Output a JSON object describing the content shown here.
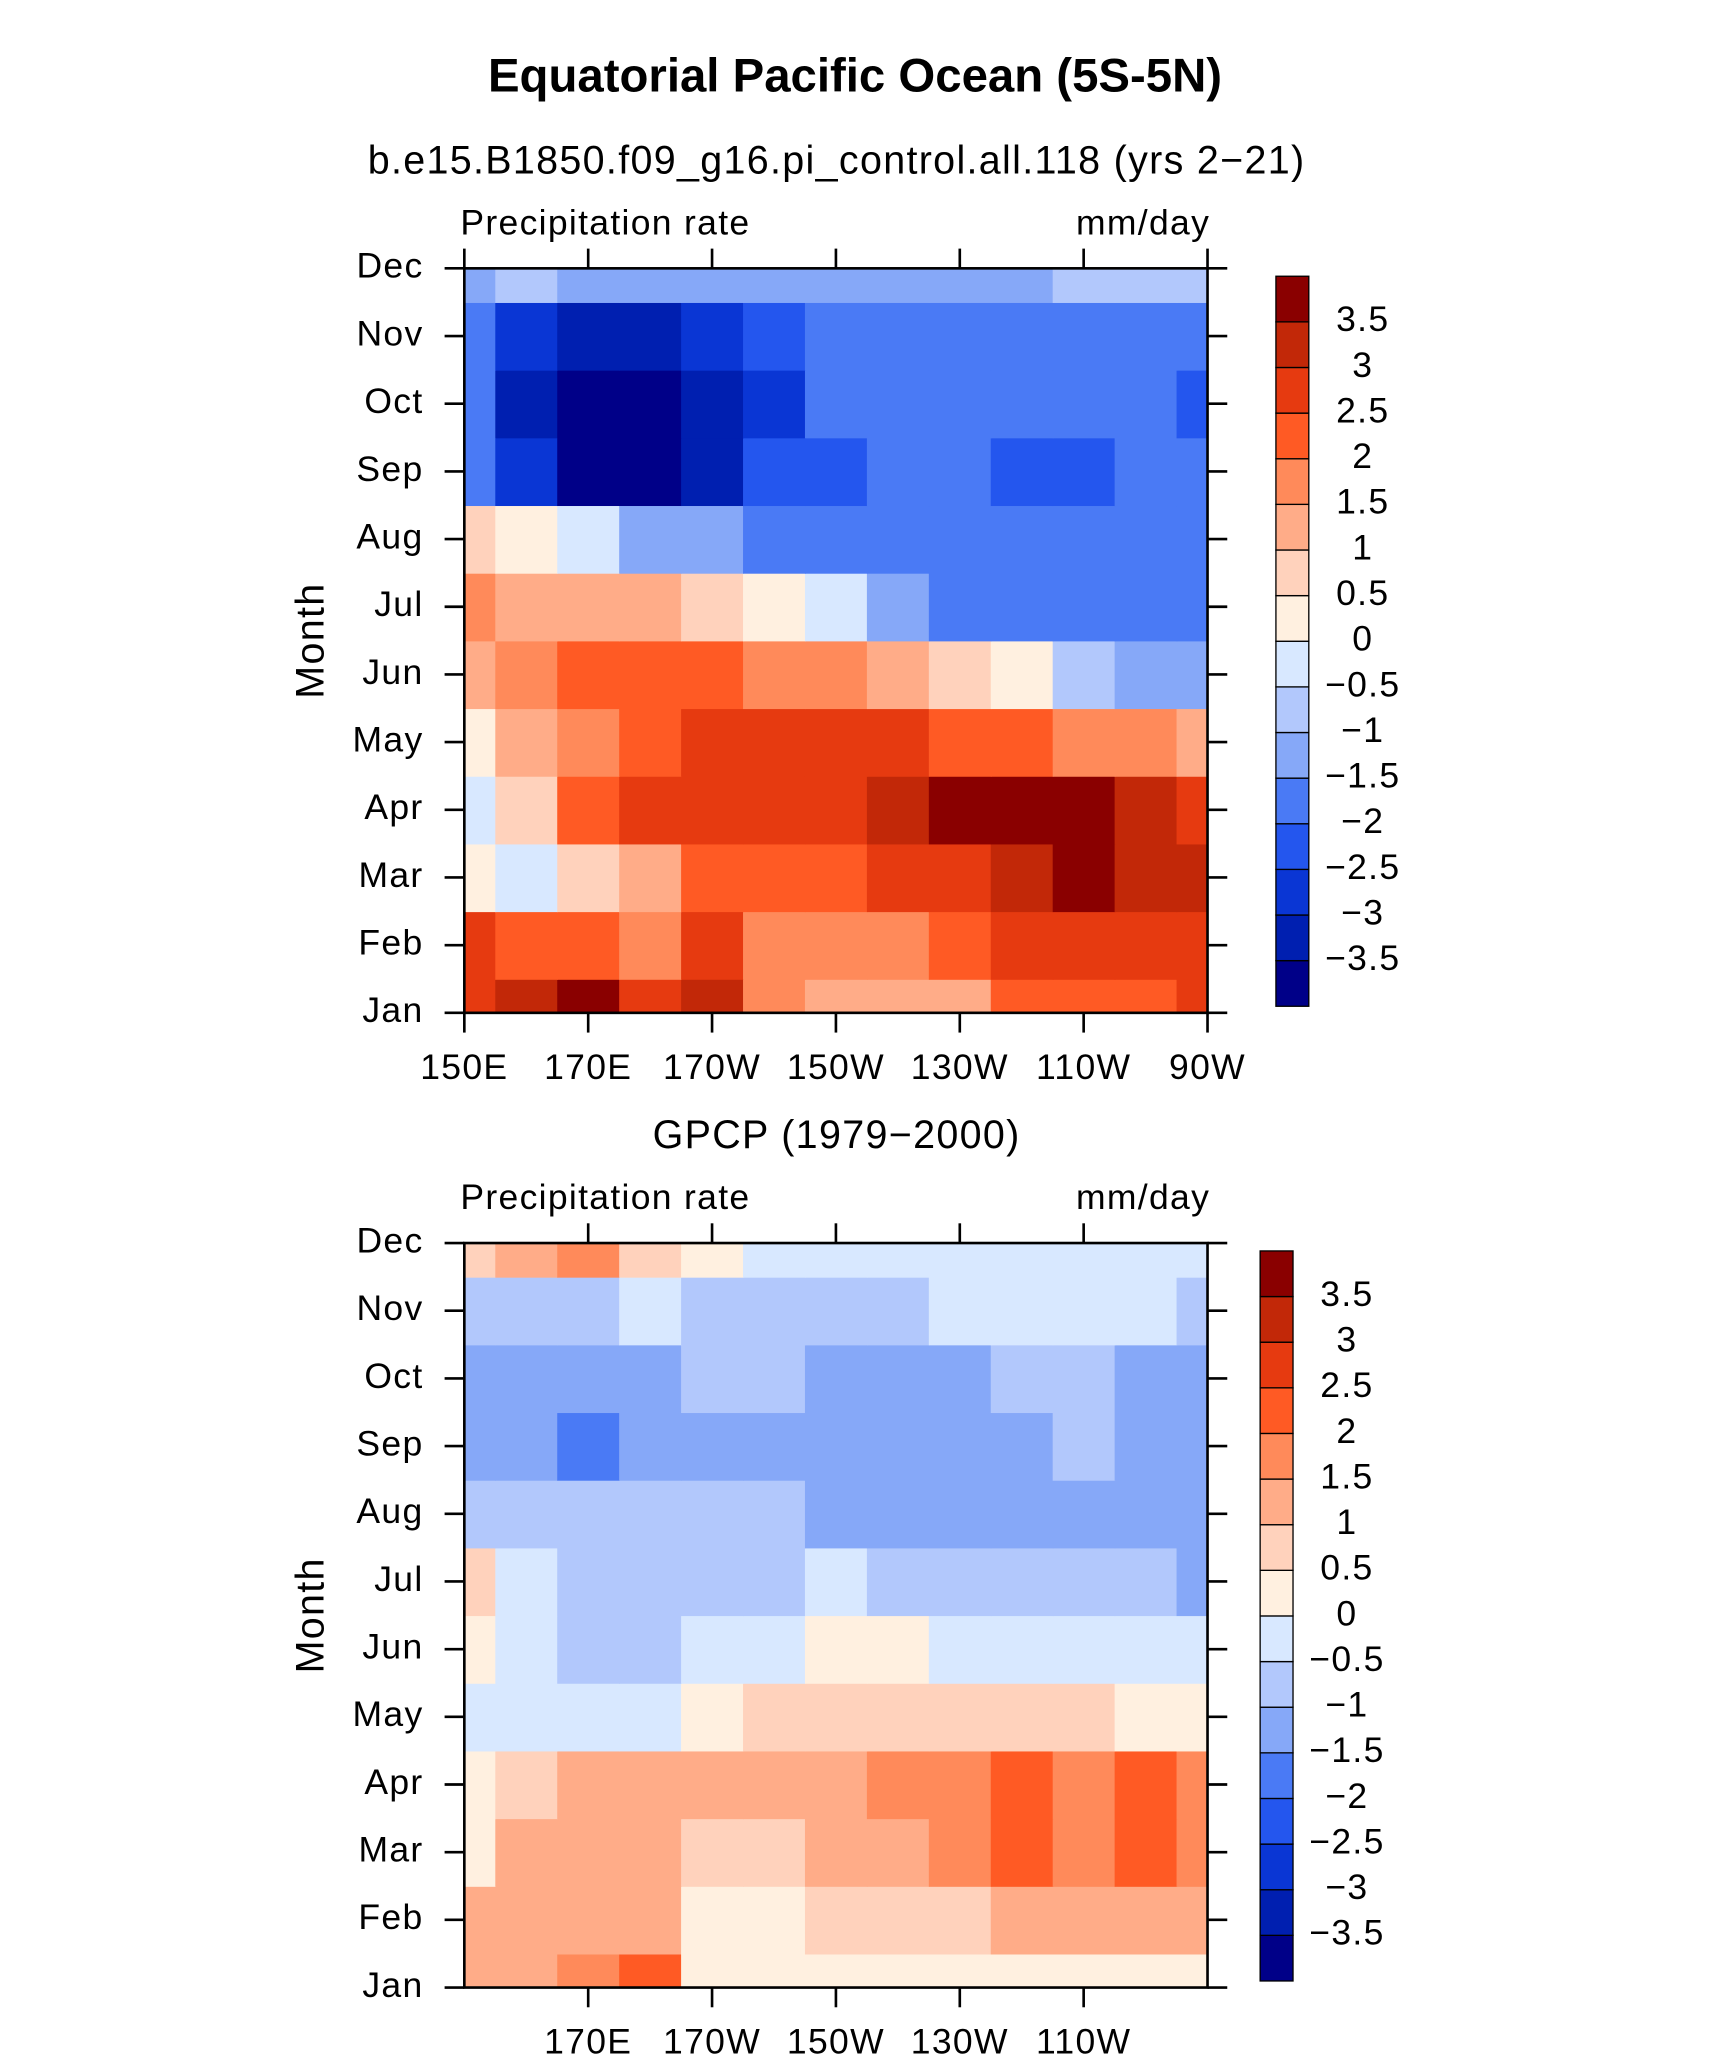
{
  "title": "Equatorial Pacific Ocean (5S-5N)",
  "chart_data": [
    {
      "type": "contour",
      "subtitle": "b.e15.B1850.f09_g16.pi_control.all.118 (yrs 2−21)",
      "left_label": "Precipitation rate",
      "right_label": "mm/day",
      "ylabel": "Month",
      "categories": [
        "Jan",
        "Feb",
        "Mar",
        "Apr",
        "May",
        "Jun",
        "Jul",
        "Aug",
        "Sep",
        "Oct",
        "Nov",
        "Dec"
      ],
      "x": [
        150,
        160,
        170,
        180,
        190,
        200,
        210,
        220,
        230,
        240,
        250,
        260,
        270
      ],
      "xlim": [
        150,
        270
      ],
      "xticks": [
        {
          "value": 150,
          "label": "150E"
        },
        {
          "value": 170,
          "label": "170E"
        },
        {
          "value": 190,
          "label": "170W"
        },
        {
          "value": 210,
          "label": "150W"
        },
        {
          "value": 230,
          "label": "130W"
        },
        {
          "value": 250,
          "label": "110W"
        },
        {
          "value": 270,
          "label": "90W"
        }
      ],
      "values": [
        [
          2.5,
          3,
          3.5,
          2.5,
          3,
          1.5,
          1.2,
          1,
          1.3,
          2,
          2,
          2,
          2.5
        ],
        [
          2.5,
          2.2,
          2,
          1.8,
          2.5,
          1.5,
          1.5,
          1.8,
          2,
          2.5,
          2.5,
          2.5,
          2.5
        ],
        [
          0.3,
          -0.3,
          0.5,
          1,
          2,
          2,
          2,
          2.5,
          2.8,
          3.2,
          3.5,
          3.3,
          3
        ],
        [
          -0.3,
          0.8,
          2.2,
          2.6,
          2.6,
          2.7,
          2.8,
          3.2,
          3.6,
          3.8,
          3.7,
          3.3,
          2.8
        ],
        [
          0,
          1.2,
          1.8,
          2.4,
          2.8,
          2.8,
          2.8,
          2.6,
          2.4,
          2.1,
          1.8,
          1.5,
          1.2
        ],
        [
          1.2,
          1.5,
          2,
          2,
          2,
          1.8,
          1.6,
          1.2,
          0.6,
          0,
          -0.8,
          -1.3,
          -1.5
        ],
        [
          1.8,
          1.3,
          1.2,
          1,
          0.8,
          0.3,
          -0.5,
          -1.2,
          -1.6,
          -1.8,
          -1.9,
          -1.9,
          -1.8
        ],
        [
          0.8,
          0.2,
          -0.5,
          -1.2,
          -1.5,
          -1.7,
          -1.8,
          -1.8,
          -1.8,
          -1.9,
          -2,
          -1.8,
          -1.7
        ],
        [
          -1.8,
          -2.8,
          -3.6,
          -3.6,
          -3.4,
          -2.5,
          -2.1,
          -1.8,
          -1.9,
          -2.1,
          -2.1,
          -1.8,
          -1.8
        ],
        [
          -2,
          -3.2,
          -3.8,
          -3.8,
          -3.5,
          -2.8,
          -2,
          -1.8,
          -1.8,
          -1.9,
          -1.9,
          -1.8,
          -2.1
        ],
        [
          -2,
          -2.8,
          -3.2,
          -3.2,
          -3,
          -2.5,
          -1.8,
          -1.7,
          -1.6,
          -1.6,
          -1.6,
          -1.7,
          -1.8
        ],
        [
          -1.2,
          -1,
          -1.3,
          -1.3,
          -1.2,
          -1.5,
          -1.3,
          -1.2,
          -1.2,
          -1.1,
          -0.9,
          -0.7,
          -1
        ]
      ],
      "levels": [
        {
          "value": -3.5,
          "label": "−3.5"
        },
        {
          "value": -3,
          "label": "−3"
        },
        {
          "value": -2.5,
          "label": "−2.5"
        },
        {
          "value": -2,
          "label": "−2"
        },
        {
          "value": -1.5,
          "label": "−1.5"
        },
        {
          "value": -1,
          "label": "−1"
        },
        {
          "value": -0.5,
          "label": "−0.5"
        },
        0,
        0.5,
        1,
        1.5,
        2,
        2.5,
        3,
        3.5
      ],
      "colors": [
        "#000088",
        "#001fb0",
        "#0a36d4",
        "#2456ee",
        "#4a7af5",
        "#86a8f8",
        "#b2c8fc",
        "#d8e8ff",
        "#fff0e0",
        "#ffd2bc",
        "#ffac88",
        "#ff8a5a",
        "#ff5a24",
        "#e63a10",
        "#c22808",
        "#8a0000"
      ]
    },
    {
      "type": "contour",
      "subtitle": "GPCP (1979−2000)",
      "left_label": "Precipitation rate",
      "right_label": "mm/day",
      "ylabel": "Month",
      "categories": [
        "Jan",
        "Feb",
        "Mar",
        "Apr",
        "May",
        "Jun",
        "Jul",
        "Aug",
        "Sep",
        "Oct",
        "Nov",
        "Dec"
      ],
      "x": [
        150,
        160,
        170,
        180,
        190,
        200,
        210,
        220,
        230,
        240,
        250,
        260,
        270
      ],
      "xlim": [
        150,
        270
      ],
      "xticks": [
        {
          "value": 170,
          "label": "170E"
        },
        {
          "value": 190,
          "label": "170W"
        },
        {
          "value": 210,
          "label": "150W"
        },
        {
          "value": 230,
          "label": "130W"
        },
        {
          "value": 250,
          "label": "110W"
        }
      ],
      "values": [
        [
          1,
          1.3,
          1.6,
          2,
          0.4,
          0.3,
          0.3,
          0.4,
          0.4,
          0.4,
          0.4,
          0.3,
          0.3
        ],
        [
          1,
          1.2,
          1.4,
          1.2,
          0.3,
          0.4,
          0.6,
          0.8,
          0.9,
          1,
          1,
          1.1,
          1.3
        ],
        [
          0.4,
          1.2,
          1.4,
          1.2,
          0.5,
          0.8,
          1.2,
          1.4,
          1.6,
          2,
          1.8,
          2.1,
          1.6
        ],
        [
          0.3,
          0.8,
          1,
          1.2,
          1,
          1,
          1.4,
          1.6,
          1.7,
          2,
          1.7,
          2,
          1.5
        ],
        [
          -0.2,
          -0.3,
          -0.5,
          -0.3,
          0.3,
          0.6,
          0.8,
          0.8,
          0.7,
          0.6,
          0.5,
          0.4,
          0.2
        ],
        [
          0.3,
          -0.4,
          -0.7,
          -0.7,
          -0.4,
          -0.1,
          0.2,
          0.1,
          -0.2,
          -0.3,
          -0.3,
          -0.4,
          -0.4
        ],
        [
          0.5,
          -0.5,
          -0.8,
          -0.8,
          -0.7,
          -0.6,
          -0.5,
          -0.7,
          -0.8,
          -0.8,
          -0.7,
          -0.8,
          -1.2
        ],
        [
          -0.6,
          -0.8,
          -1,
          -1,
          -1,
          -1,
          -1.2,
          -1.3,
          -1.3,
          -1.2,
          -1.1,
          -1.2,
          -1.3
        ],
        [
          -1.2,
          -1.4,
          -1.6,
          -1.4,
          -1.2,
          -1.1,
          -1.3,
          -1.4,
          -1.4,
          -1.3,
          -1,
          -1.2,
          -1.3
        ],
        [
          -1.2,
          -1.3,
          -1.5,
          -1.2,
          -1,
          -0.9,
          -1.1,
          -1.2,
          -1.2,
          -1,
          -0.8,
          -1.1,
          -1.2
        ],
        [
          -0.6,
          -0.9,
          -0.6,
          -0.5,
          -0.6,
          -0.6,
          -0.6,
          -0.6,
          -0.5,
          -0.5,
          -0.5,
          -0.5,
          -0.6
        ],
        [
          0.6,
          1,
          1.6,
          0.9,
          0.3,
          -0.2,
          -0.3,
          -0.2,
          -0.3,
          -0.2,
          -0.4,
          -0.4,
          -0.3
        ]
      ],
      "levels": [
        {
          "value": -3.5,
          "label": "−3.5"
        },
        {
          "value": -3,
          "label": "−3"
        },
        {
          "value": -2.5,
          "label": "−2.5"
        },
        {
          "value": -2,
          "label": "−2"
        },
        {
          "value": -1.5,
          "label": "−1.5"
        },
        {
          "value": -1,
          "label": "−1"
        },
        {
          "value": -0.5,
          "label": "−0.5"
        },
        0,
        0.5,
        1,
        1.5,
        2,
        2.5,
        3,
        3.5
      ],
      "colors": [
        "#000088",
        "#001fb0",
        "#0a36d4",
        "#2456ee",
        "#4a7af5",
        "#86a8f8",
        "#b2c8fc",
        "#d8e8ff",
        "#fff0e0",
        "#ffd2bc",
        "#ffac88",
        "#ff8a5a",
        "#ff5a24",
        "#e63a10",
        "#c22808",
        "#8a0000"
      ]
    }
  ]
}
